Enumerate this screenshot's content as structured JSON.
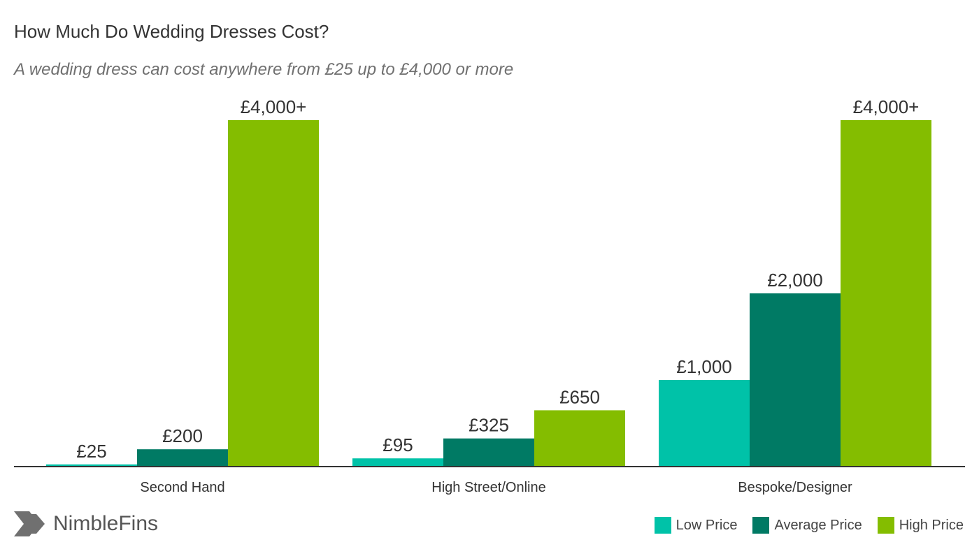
{
  "chart_data": {
    "type": "bar",
    "title": "How Much Do Wedding Dresses Cost?",
    "subtitle": "A wedding dress can cost anywhere from £25 up to £4,000 or more",
    "categories": [
      "Second Hand",
      "High Street/Online",
      "Bespoke/Designer"
    ],
    "series": [
      {
        "name": "Low Price",
        "color": "#00c2a8",
        "values": [
          25,
          95,
          1000
        ],
        "labels": [
          "£25",
          "£95",
          "£1,000"
        ]
      },
      {
        "name": "Average Price",
        "color": "#007a64",
        "values": [
          200,
          325,
          2000
        ],
        "labels": [
          "£200",
          "£325",
          "£2,000"
        ]
      },
      {
        "name": "High Price",
        "color": "#84bd00",
        "values": [
          4000,
          650,
          4000
        ],
        "labels": [
          "£4,000+",
          "£650",
          "£4,000+"
        ]
      }
    ],
    "xlabel": "",
    "ylabel": "",
    "ylim": [
      0,
      4000
    ],
    "grid": false,
    "legend_position": "bottom-right"
  },
  "branding": {
    "logo_text": "NimbleFins",
    "logo_icon": "nimblefins-chevron-icon"
  }
}
